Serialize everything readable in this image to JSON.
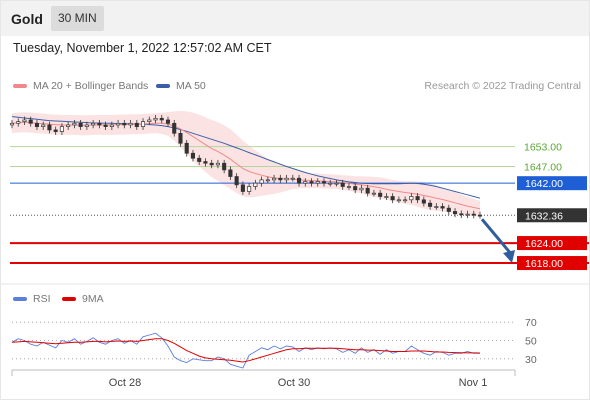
{
  "header": {
    "title": "Gold",
    "interval": "30 MIN",
    "datetime": "Tuesday, November 1, 2022 12:57:02 AM CET",
    "copyright": "Research © 2022 Trading Central"
  },
  "legend_main": [
    {
      "label": "MA 20 + Bollinger Bands",
      "color": "#f08a8a"
    },
    {
      "label": "MA 50",
      "color": "#3a5fa8"
    }
  ],
  "legend_rsi": [
    {
      "label": "RSI",
      "color": "#5b7fdb"
    },
    {
      "label": "9MA",
      "color": "#e00000"
    }
  ],
  "chart_data": {
    "type": "line",
    "subtype": "candlestick",
    "price_ylim": [
      1612,
      1667
    ],
    "x_ticks": [
      "Oct 28",
      "Oct 30",
      "Nov 1"
    ],
    "levels": [
      {
        "value": 1653.0,
        "label": "1653.00",
        "style": "green"
      },
      {
        "value": 1647.0,
        "label": "1647.00",
        "style": "green"
      },
      {
        "value": 1642.0,
        "label": "1642.00",
        "style": "blue"
      },
      {
        "value": 1632.36,
        "label": "1632.36",
        "style": "current"
      },
      {
        "value": 1624.0,
        "label": "1624.00",
        "style": "red"
      },
      {
        "value": 1618.0,
        "label": "1618.00",
        "style": "red"
      }
    ],
    "price_close": [
      1660,
      1660.5,
      1661,
      1660,
      1659,
      1659.5,
      1658,
      1657.5,
      1659,
      1659.5,
      1660,
      1659,
      1659.5,
      1660,
      1659.5,
      1659,
      1659.5,
      1660,
      1659.5,
      1660,
      1659,
      1660.5,
      1661,
      1661.5,
      1661,
      1660,
      1657,
      1654,
      1651,
      1649.5,
      1648.5,
      1648,
      1647.5,
      1648,
      1646,
      1644,
      1641.5,
      1639.5,
      1641,
      1642,
      1643,
      1643,
      1643.5,
      1643,
      1643.5,
      1643.5,
      1642,
      1642.5,
      1642,
      1642.5,
      1642,
      1642,
      1642,
      1641,
      1641,
      1640,
      1640.5,
      1639,
      1639,
      1638,
      1638,
      1637,
      1637,
      1637,
      1638,
      1637,
      1636,
      1635,
      1635,
      1634.5,
      1633.5,
      1632.8,
      1632.5,
      1632.7,
      1632.4,
      1632.36
    ],
    "ma20": [
      1660,
      1660.2,
      1660.3,
      1660.2,
      1660,
      1659.9,
      1659.7,
      1659.6,
      1659.5,
      1659.5,
      1659.5,
      1659.4,
      1659.4,
      1659.5,
      1659.5,
      1659.5,
      1659.5,
      1659.6,
      1659.6,
      1659.7,
      1659.7,
      1659.8,
      1659.9,
      1660,
      1660,
      1659.8,
      1659.2,
      1658.3,
      1657.2,
      1656,
      1654.8,
      1653.6,
      1652.4,
      1651.5,
      1650.4,
      1649.2,
      1647.8,
      1646.4,
      1645.5,
      1644.9,
      1644.4,
      1643.9,
      1643.6,
      1643.4,
      1643.3,
      1643.2,
      1643,
      1642.9,
      1642.8,
      1642.7,
      1642.6,
      1642.5,
      1642.4,
      1642.2,
      1642,
      1641.7,
      1641.5,
      1641.2,
      1640.9,
      1640.6,
      1640.2,
      1639.8,
      1639.5,
      1639.2,
      1639,
      1638.7,
      1638.3,
      1637.9,
      1637.5,
      1637.1,
      1636.6,
      1636.1,
      1635.6,
      1635.1,
      1634.7,
      1634.3
    ],
    "ma50": [
      1662,
      1661.8,
      1661.6,
      1661.4,
      1661.2,
      1661,
      1660.8,
      1660.7,
      1660.6,
      1660.5,
      1660.4,
      1660.3,
      1660.2,
      1660.1,
      1660.1,
      1660,
      1660,
      1659.9,
      1659.9,
      1659.8,
      1659.8,
      1659.7,
      1659.6,
      1659.5,
      1659.3,
      1659,
      1658.6,
      1658.1,
      1657.6,
      1657,
      1656.4,
      1655.8,
      1655.2,
      1654.6,
      1654,
      1653.3,
      1652.6,
      1651.9,
      1651.2,
      1650.5,
      1649.8,
      1649.1,
      1648.4,
      1647.7,
      1647,
      1646.4,
      1645.8,
      1645.2,
      1644.7,
      1644.2,
      1643.8,
      1643.4,
      1643,
      1642.7,
      1642.4,
      1642.2,
      1642,
      1641.9,
      1641.8,
      1641.8,
      1641.8,
      1641.8,
      1641.8,
      1641.9,
      1642,
      1641.9,
      1641.7,
      1641.4,
      1641,
      1640.5,
      1640,
      1639.5,
      1639,
      1638.5,
      1638,
      1637.5
    ],
    "bb_width": [
      3,
      3,
      3,
      3,
      3,
      3,
      3,
      3,
      3,
      3,
      3,
      3,
      3,
      3,
      3,
      3,
      3,
      3,
      3,
      3,
      3,
      3,
      3,
      3,
      3.2,
      3.6,
      4.4,
      5.4,
      6.4,
      7.2,
      7.8,
      8.2,
      8.6,
      8.8,
      9,
      9,
      8.8,
      8.4,
      7.8,
      7,
      6.2,
      5.4,
      4.8,
      4.2,
      3.6,
      3,
      2.6,
      2.4,
      2.2,
      2.2,
      2.2,
      2.2,
      2.2,
      2.2,
      2.3,
      2.4,
      2.6,
      2.8,
      3,
      3.2,
      3.2,
      3.2,
      3.2,
      3.4,
      3.6,
      3.8,
      4,
      4,
      3.8,
      3.6,
      3.4,
      3.2,
      3,
      2.8,
      2.6,
      2.4
    ],
    "forecast": {
      "from": 1632.36,
      "to": 1618.0
    },
    "rsi": {
      "ylim": [
        20,
        80
      ],
      "ticks": [
        70,
        50,
        30
      ],
      "rsi": [
        48,
        52,
        50,
        46,
        44,
        48,
        45,
        42,
        50,
        48,
        52,
        46,
        49,
        53,
        48,
        46,
        50,
        52,
        47,
        50,
        46,
        54,
        56,
        58,
        53,
        44,
        32,
        28,
        26,
        30,
        29,
        28,
        28,
        32,
        30,
        24,
        22,
        20,
        34,
        38,
        42,
        40,
        44,
        41,
        44,
        43,
        38,
        42,
        40,
        42,
        41,
        42,
        41,
        37,
        40,
        36,
        42,
        37,
        40,
        35,
        40,
        36,
        38,
        38,
        44,
        40,
        36,
        34,
        38,
        37,
        34,
        36,
        36,
        38,
        36,
        36
      ],
      "ma9": [
        48,
        48.5,
        49,
        48.5,
        48,
        47.5,
        47,
        46.5,
        47,
        47.5,
        48,
        48,
        48.5,
        49,
        49,
        48.5,
        49,
        49.5,
        49,
        49.5,
        49,
        50,
        51,
        52,
        52,
        50,
        47,
        43,
        39,
        36,
        33,
        31,
        30,
        29.5,
        29,
        28.5,
        27.5,
        26.5,
        28,
        30,
        32,
        34,
        36,
        38,
        40,
        41,
        41,
        41.5,
        41.5,
        41.5,
        41.5,
        41.5,
        41.5,
        41,
        40.5,
        40,
        40,
        39.5,
        39.5,
        39,
        38.5,
        38,
        38,
        38,
        38.5,
        38.5,
        38.5,
        38,
        37.5,
        37.5,
        37,
        36.8,
        36.6,
        36.5,
        36.5,
        36.4
      ]
    }
  }
}
